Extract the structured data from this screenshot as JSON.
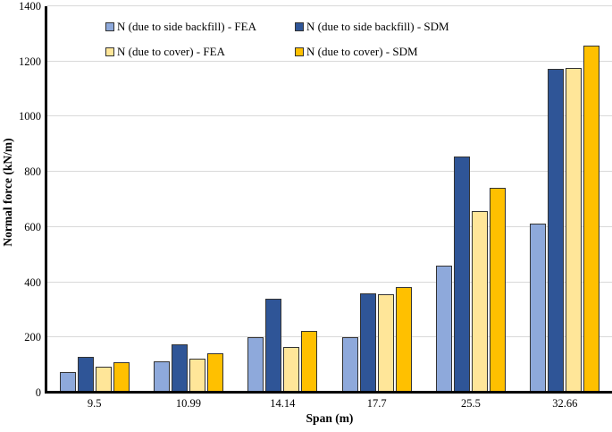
{
  "chart_data": {
    "type": "bar",
    "title": "",
    "xlabel": "Span (m)",
    "ylabel": "Normal force (kN/m)",
    "ylim": [
      0,
      1400
    ],
    "ytick_step": 200,
    "ytick_labels": [
      "0",
      "200",
      "400",
      "600",
      "800",
      "1000",
      "1200",
      "1400"
    ],
    "grid": true,
    "legend_position": "top-inside-two-column",
    "categories": [
      "9.5",
      "10.99",
      "14.14",
      "17.7",
      "25.5",
      "32.66"
    ],
    "series": [
      {
        "name": "N (due to side backfill) - FEA",
        "color": "#8EA9DB",
        "values": [
          75,
          115,
          200,
          200,
          461,
          611
        ]
      },
      {
        "name": "N (due to side backfill) - SDM",
        "color": "#2F5597",
        "values": [
          131,
          176,
          341,
          361,
          854,
          1172
        ]
      },
      {
        "name": "N (due to cover) - FEA",
        "color": "#FFE699",
        "values": [
          95,
          122,
          165,
          357,
          658,
          1177
        ]
      },
      {
        "name": "N (due to cover) - SDM",
        "color": "#FFC000",
        "values": [
          110,
          143,
          224,
          383,
          741,
          1256
        ]
      }
    ]
  },
  "colors": {
    "gridline": "#D9D9D9",
    "axis_line": "#000000",
    "bar_border": "#333333",
    "text": "#000000"
  }
}
